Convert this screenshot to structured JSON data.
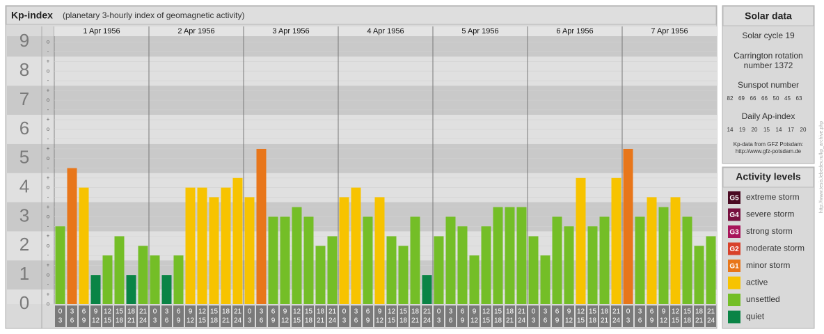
{
  "chart_data": {
    "type": "bar",
    "title": "Kp-index",
    "subtitle": "(planetary 3-hourly index of geomagnetic activity)",
    "days": [
      "1 Apr 1956",
      "2 Apr 1956",
      "3 Apr 1956",
      "4 Apr 1956",
      "5 Apr 1956",
      "6 Apr 1956",
      "7 Apr 1956"
    ],
    "hours": [
      [
        0,
        3
      ],
      [
        3,
        6
      ],
      [
        6,
        9
      ],
      [
        9,
        12
      ],
      [
        12,
        15
      ],
      [
        15,
        18
      ],
      [
        18,
        21
      ],
      [
        21,
        24
      ]
    ],
    "values": [
      2.67,
      4.67,
      4,
      1,
      1.67,
      2.33,
      1,
      2,
      1.67,
      1,
      1.67,
      4,
      4,
      3.67,
      4,
      4.33,
      3.67,
      5.33,
      3,
      3,
      3.33,
      3,
      2,
      2.33,
      3.67,
      4,
      3,
      3.67,
      2.33,
      2,
      3,
      1,
      2.33,
      3,
      2.67,
      1.67,
      2.67,
      3.33,
      3.33,
      3.33,
      2.33,
      1.67,
      3,
      2.67,
      4.33,
      2.67,
      3,
      4.33,
      5.33,
      3,
      3.67,
      3.33,
      3.67,
      3,
      2,
      2.33
    ],
    "colors": [
      "#74be27",
      "#e8761a",
      "#f7c300",
      "#0a8446",
      "#74be27",
      "#74be27",
      "#0a8446",
      "#74be27",
      "#74be27",
      "#0a8446",
      "#74be27",
      "#f7c300",
      "#f7c300",
      "#f7c300",
      "#f7c300",
      "#f7c300",
      "#f7c300",
      "#e8761a",
      "#74be27",
      "#74be27",
      "#74be27",
      "#74be27",
      "#74be27",
      "#74be27",
      "#f7c300",
      "#f7c300",
      "#74be27",
      "#f7c300",
      "#74be27",
      "#74be27",
      "#74be27",
      "#0a8446",
      "#74be27",
      "#74be27",
      "#74be27",
      "#74be27",
      "#74be27",
      "#74be27",
      "#74be27",
      "#74be27",
      "#74be27",
      "#74be27",
      "#74be27",
      "#74be27",
      "#f7c300",
      "#74be27",
      "#74be27",
      "#f7c300",
      "#e8761a",
      "#74be27",
      "#f7c300",
      "#74be27",
      "#f7c300",
      "#74be27",
      "#74be27",
      "#74be27"
    ],
    "ylim": [
      0,
      9.2
    ],
    "yticks": [
      0,
      1,
      2,
      3,
      4,
      5,
      6,
      7,
      8,
      9
    ],
    "minor_ticks": [
      {
        "value": 0,
        "label": "o"
      },
      {
        "value": 0.33,
        "label": "+"
      },
      {
        "value": 0.67,
        "label": "-"
      },
      {
        "value": 1,
        "label": "o"
      },
      {
        "value": 1.33,
        "label": "+"
      },
      {
        "value": 1.67,
        "label": "-"
      },
      {
        "value": 2,
        "label": "o"
      },
      {
        "value": 2.33,
        "label": "+"
      },
      {
        "value": 2.67,
        "label": "-"
      },
      {
        "value": 3,
        "label": "o"
      },
      {
        "value": 3.33,
        "label": "+"
      },
      {
        "value": 3.67,
        "label": "-"
      },
      {
        "value": 4,
        "label": "o"
      },
      {
        "value": 4.33,
        "label": "+"
      },
      {
        "value": 4.67,
        "label": "-"
      },
      {
        "value": 5,
        "label": "o"
      },
      {
        "value": 5.33,
        "label": "+"
      },
      {
        "value": 5.67,
        "label": "-"
      },
      {
        "value": 6,
        "label": "o"
      },
      {
        "value": 6.33,
        "label": "+"
      },
      {
        "value": 6.67,
        "label": "-"
      },
      {
        "value": 7,
        "label": "o"
      },
      {
        "value": 7.33,
        "label": "+"
      },
      {
        "value": 7.67,
        "label": "-"
      },
      {
        "value": 8,
        "label": "o"
      },
      {
        "value": 8.33,
        "label": "+"
      },
      {
        "value": 8.67,
        "label": "-"
      },
      {
        "value": 9,
        "label": "o"
      }
    ]
  },
  "solar_data": {
    "title": "Solar data",
    "cycle": "Solar cycle 19",
    "carrington": [
      "Carrington rotation",
      "number 1372"
    ],
    "sunspot_label": "Sunspot number",
    "sunspot": [
      82,
      69,
      66,
      66,
      50,
      45,
      63
    ],
    "ap_label": "Daily Ap-index",
    "ap": [
      14,
      19,
      20,
      15,
      14,
      17,
      20
    ],
    "source": [
      "Kp-data from GFZ Potsdam:",
      "http://www.gfz-potsdam.de"
    ]
  },
  "activity_levels": {
    "title": "Activity levels",
    "levels": [
      {
        "code": "G5",
        "name": "extreme storm",
        "color": "#4a0a22"
      },
      {
        "code": "G4",
        "name": "severe storm",
        "color": "#76103e"
      },
      {
        "code": "G3",
        "name": "strong storm",
        "color": "#a8145a"
      },
      {
        "code": "G2",
        "name": "moderate storm",
        "color": "#d8412a"
      },
      {
        "code": "G1",
        "name": "minor storm",
        "color": "#e8761a"
      },
      {
        "name": "active",
        "color": "#f7c300"
      },
      {
        "name": "unsettled",
        "color": "#74be27"
      },
      {
        "name": "quiet",
        "color": "#0a8446"
      }
    ]
  },
  "credit": "http://www.tesis.lebedev.ru/kp_archive.php"
}
